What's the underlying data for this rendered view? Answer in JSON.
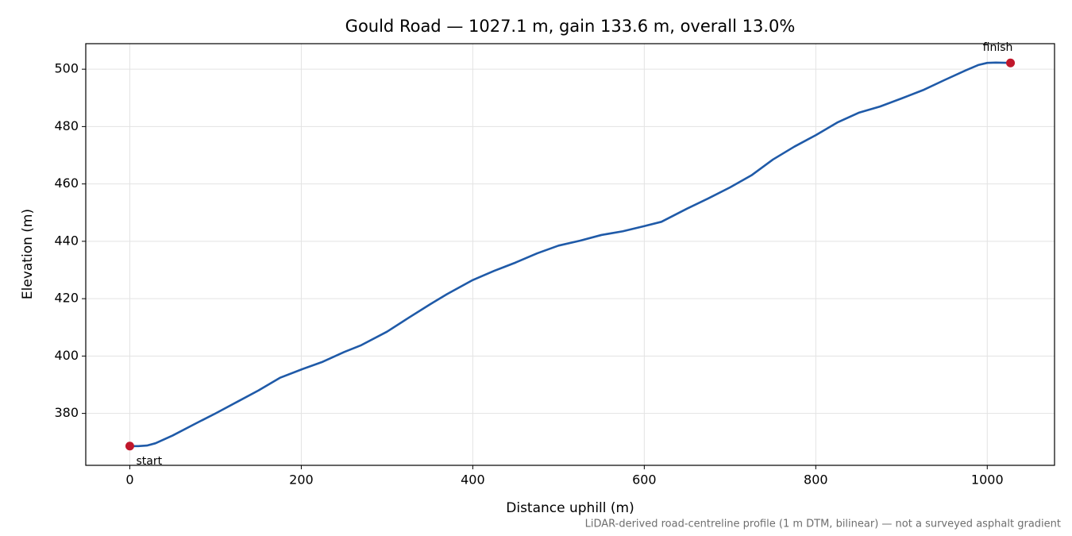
{
  "chart_data": {
    "type": "line",
    "title": "Gould Road — 1027.1 m, gain 133.6 m, overall 13.0%",
    "x_label": "Distance uphill (m)",
    "y_label": "Elevation (m)",
    "footnote": "LiDAR-derived road-centreline profile (1 m DTM, bilinear) — not a surveyed asphalt gradient",
    "x": [
      0,
      10,
      20,
      30,
      50,
      75,
      100,
      125,
      150,
      175,
      200,
      225,
      250,
      270,
      300,
      325,
      350,
      370,
      400,
      425,
      450,
      475,
      500,
      525,
      550,
      575,
      600,
      620,
      650,
      675,
      700,
      725,
      750,
      775,
      800,
      825,
      850,
      875,
      900,
      925,
      950,
      975,
      990,
      1000,
      1010,
      1027.1
    ],
    "series": [
      {
        "name": "Elevation",
        "color": "#1f5aa8",
        "values": [
          368.6,
          368.6,
          368.8,
          369.6,
          372.3,
          376.2,
          380.0,
          384.0,
          388.0,
          392.4,
          395.3,
          398.0,
          401.4,
          403.8,
          408.5,
          413.3,
          418.0,
          421.6,
          426.5,
          429.7,
          432.6,
          435.8,
          438.5,
          440.2,
          442.2,
          443.5,
          445.3,
          446.8,
          451.4,
          455.0,
          458.8,
          463.0,
          468.5,
          473.0,
          477.0,
          481.4,
          484.8,
          487.0,
          489.8,
          492.7,
          496.2,
          499.6,
          501.5,
          502.2,
          502.3,
          502.2
        ]
      }
    ],
    "markers": [
      {
        "label": "start",
        "x": 0,
        "y": 368.6,
        "color": "#c0172b"
      },
      {
        "label": "finish",
        "x": 1027.1,
        "y": 502.2,
        "color": "#c0172b"
      }
    ],
    "xlim": [
      -51.36,
      1078.46
    ],
    "ylim": [
      361.9,
      508.9
    ],
    "xticks": [
      0,
      200,
      400,
      600,
      800,
      1000
    ],
    "yticks": [
      380,
      400,
      420,
      440,
      460,
      480,
      500
    ],
    "grid": true
  }
}
